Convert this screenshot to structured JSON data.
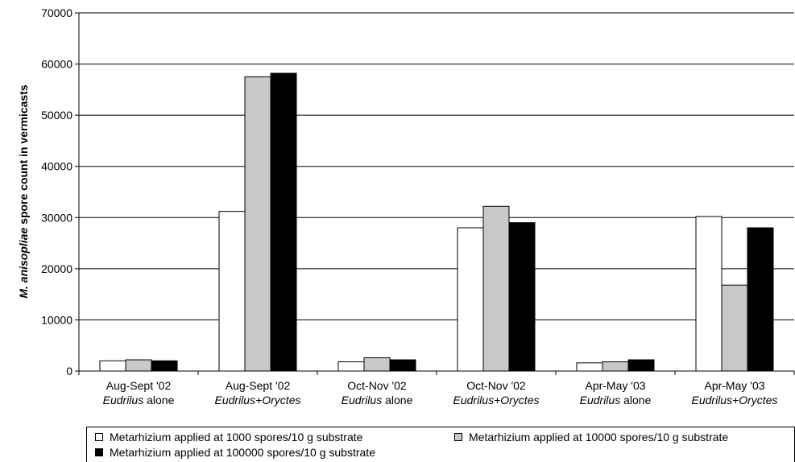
{
  "chart_data": {
    "type": "bar",
    "ylabel_italic": "M. anisopliae",
    "ylabel_rest": " spore count in vermicasts",
    "ylim": [
      0,
      70000
    ],
    "yticks": [
      "0",
      "10000",
      "20000",
      "30000",
      "40000",
      "50000",
      "60000",
      "70000"
    ],
    "ytick_values": [
      0,
      10000,
      20000,
      30000,
      40000,
      50000,
      60000,
      70000
    ],
    "grid": true,
    "categories": [
      {
        "line1": "Aug-Sept '02",
        "italic": "Eudrilus",
        "rest": " alone"
      },
      {
        "line1": "Aug-Sept '02",
        "italic": "Eudrilus+Oryctes",
        "rest": ""
      },
      {
        "line1": "Oct-Nov '02",
        "italic": "Eudrilus",
        "rest": " alone"
      },
      {
        "line1": "Oct-Nov '02",
        "italic": "Eudrilus+Oryctes",
        "rest": ""
      },
      {
        "line1": "Apr-May '03",
        "italic": "Eudrilus",
        "rest": " alone"
      },
      {
        "line1": "Apr-May '03",
        "italic": "Eudrilus+Oryctes",
        "rest": ""
      }
    ],
    "series": [
      {
        "name": "Metarhizium applied at 1000 spores/10 g substrate",
        "color": "#ffffff",
        "values": [
          2000,
          31200,
          1800,
          28000,
          1600,
          30200
        ]
      },
      {
        "name": "Metarhizium applied at 10000 spores/10 g substrate",
        "color": "#c8c8c8",
        "values": [
          2200,
          57500,
          2600,
          32200,
          1800,
          16800
        ]
      },
      {
        "name": "Metarhizium applied at 100000 spores/10 g substrate",
        "color": "#000000",
        "values": [
          2000,
          58200,
          2200,
          29000,
          2200,
          28000
        ]
      }
    ],
    "legend_position": "bottom"
  }
}
